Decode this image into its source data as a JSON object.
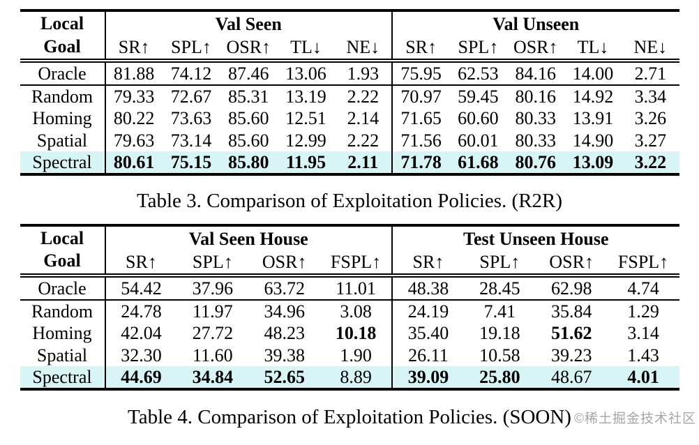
{
  "colors": {
    "highlight_row": "#d9f4f7",
    "rule": "#000000",
    "watermark": "#a6a6a6"
  },
  "watermark": {
    "text": "©稀土掘金技术社区"
  },
  "tables": [
    {
      "caption": "Table 3. Comparison of Exploitation Policies. (R2R)",
      "row_header_lines": [
        "Local",
        "Goal"
      ],
      "groups": [
        {
          "label": "Val Seen",
          "columns": [
            "SR↑",
            "SPL↑",
            "OSR↑",
            "TL↓",
            "NE↓"
          ]
        },
        {
          "label": "Val Unseen",
          "columns": [
            "SR↑",
            "SPL↑",
            "OSR↑",
            "TL↓",
            "NE↓"
          ]
        }
      ],
      "rows": [
        {
          "label": "Oracle",
          "highlight": false,
          "rule_below": true,
          "cells": [
            {
              "v": "81.88"
            },
            {
              "v": "74.12"
            },
            {
              "v": "87.46"
            },
            {
              "v": "13.06"
            },
            {
              "v": "1.93"
            },
            {
              "v": "75.95"
            },
            {
              "v": "62.53"
            },
            {
              "v": "84.16"
            },
            {
              "v": "14.00"
            },
            {
              "v": "2.71"
            }
          ]
        },
        {
          "label": "Random",
          "highlight": false,
          "rule_below": false,
          "cells": [
            {
              "v": "79.33"
            },
            {
              "v": "72.67"
            },
            {
              "v": "85.31"
            },
            {
              "v": "13.19"
            },
            {
              "v": "2.22"
            },
            {
              "v": "70.97"
            },
            {
              "v": "59.45"
            },
            {
              "v": "80.16"
            },
            {
              "v": "14.92"
            },
            {
              "v": "3.34"
            }
          ]
        },
        {
          "label": "Homing",
          "highlight": false,
          "rule_below": false,
          "cells": [
            {
              "v": "80.22"
            },
            {
              "v": "73.63"
            },
            {
              "v": "85.60"
            },
            {
              "v": "12.51"
            },
            {
              "v": "2.14"
            },
            {
              "v": "71.65"
            },
            {
              "v": "60.60"
            },
            {
              "v": "80.33"
            },
            {
              "v": "13.91"
            },
            {
              "v": "3.26"
            }
          ]
        },
        {
          "label": "Spatial",
          "highlight": false,
          "rule_below": false,
          "cells": [
            {
              "v": "79.63"
            },
            {
              "v": "73.14"
            },
            {
              "v": "85.60"
            },
            {
              "v": "12.99"
            },
            {
              "v": "2.22"
            },
            {
              "v": "71.56"
            },
            {
              "v": "60.01"
            },
            {
              "v": "80.33"
            },
            {
              "v": "14.90"
            },
            {
              "v": "3.27"
            }
          ]
        },
        {
          "label": "Spectral",
          "highlight": true,
          "rule_below": false,
          "cells": [
            {
              "v": "80.61",
              "b": true
            },
            {
              "v": "75.15",
              "b": true
            },
            {
              "v": "85.80",
              "b": true
            },
            {
              "v": "11.95",
              "b": true
            },
            {
              "v": "2.11",
              "b": true
            },
            {
              "v": "71.78",
              "b": true
            },
            {
              "v": "61.68",
              "b": true
            },
            {
              "v": "80.76",
              "b": true
            },
            {
              "v": "13.09",
              "b": true
            },
            {
              "v": "3.22",
              "b": true
            }
          ]
        }
      ]
    },
    {
      "caption": "Table 4. Comparison of Exploitation Policies. (SOON)",
      "row_header_lines": [
        "Local",
        "Goal"
      ],
      "groups": [
        {
          "label": "Val Seen House",
          "columns": [
            "SR↑",
            "SPL↑",
            "OSR↑",
            "FSPL↑"
          ]
        },
        {
          "label": "Test Unseen House",
          "columns": [
            "SR↑",
            "SPL↑",
            "OSR↑",
            "FSPL↑"
          ]
        }
      ],
      "rows": [
        {
          "label": "Oracle",
          "highlight": false,
          "rule_below": true,
          "cells": [
            {
              "v": "54.42"
            },
            {
              "v": "37.96"
            },
            {
              "v": "63.72"
            },
            {
              "v": "11.01"
            },
            {
              "v": "48.38"
            },
            {
              "v": "28.45"
            },
            {
              "v": "62.98"
            },
            {
              "v": "4.74"
            }
          ]
        },
        {
          "label": "Random",
          "highlight": false,
          "rule_below": false,
          "cells": [
            {
              "v": "24.78"
            },
            {
              "v": "11.97"
            },
            {
              "v": "34.96"
            },
            {
              "v": "3.08"
            },
            {
              "v": "24.19"
            },
            {
              "v": "7.41"
            },
            {
              "v": "35.84"
            },
            {
              "v": "1.29"
            }
          ]
        },
        {
          "label": "Homing",
          "highlight": false,
          "rule_below": false,
          "cells": [
            {
              "v": "42.04"
            },
            {
              "v": "27.72"
            },
            {
              "v": "48.23"
            },
            {
              "v": "10.18",
              "b": true
            },
            {
              "v": "35.40"
            },
            {
              "v": "19.18"
            },
            {
              "v": "51.62",
              "b": true
            },
            {
              "v": "3.14"
            }
          ]
        },
        {
          "label": "Spatial",
          "highlight": false,
          "rule_below": false,
          "cells": [
            {
              "v": "32.30"
            },
            {
              "v": "11.60"
            },
            {
              "v": "39.38"
            },
            {
              "v": "1.90"
            },
            {
              "v": "26.11"
            },
            {
              "v": "10.58"
            },
            {
              "v": "39.23"
            },
            {
              "v": "1.43"
            }
          ]
        },
        {
          "label": "Spectral",
          "highlight": true,
          "rule_below": false,
          "cells": [
            {
              "v": "44.69",
              "b": true
            },
            {
              "v": "34.84",
              "b": true
            },
            {
              "v": "52.65",
              "b": true
            },
            {
              "v": "8.89"
            },
            {
              "v": "39.09",
              "b": true
            },
            {
              "v": "25.80",
              "b": true
            },
            {
              "v": "48.67"
            },
            {
              "v": "4.01",
              "b": true
            }
          ]
        }
      ]
    }
  ]
}
